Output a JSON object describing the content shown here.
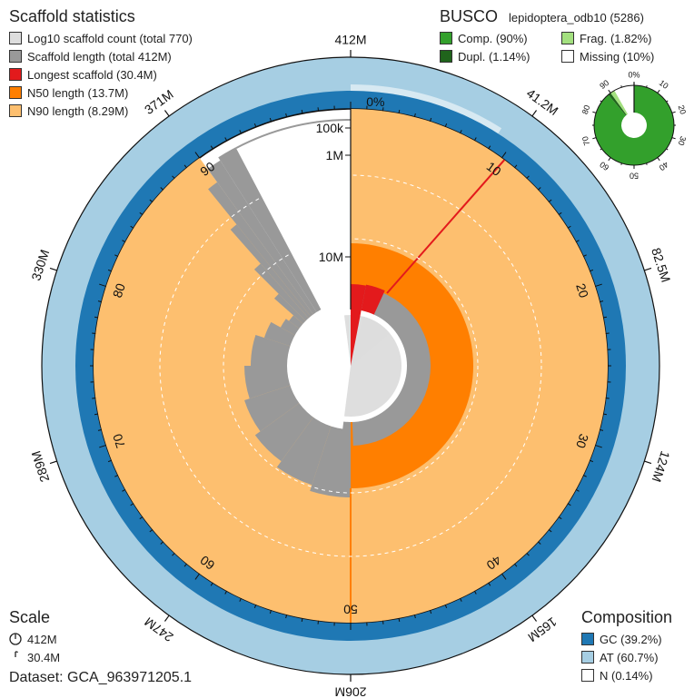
{
  "stats_legend": {
    "title": "Scaffold statistics",
    "items": [
      {
        "label": "Log10 scaffold count (total 770)",
        "color": "#dddddd"
      },
      {
        "label": "Scaffold length (total 412M)",
        "color": "#999999"
      },
      {
        "label": "Longest scaffold (30.4M)",
        "color": "#e31a1c"
      },
      {
        "label": "N50 length (13.7M)",
        "color": "#ff7f00"
      },
      {
        "label": "N90 length (8.29M)",
        "color": "#fdbf6f"
      }
    ]
  },
  "busco_legend": {
    "title": "BUSCO",
    "lineage": "lepidoptera_odb10 (5286)",
    "items": [
      {
        "label": "Comp. (90%)",
        "color": "#33a02c"
      },
      {
        "label": "Frag. (1.82%)",
        "color": "#a3e07f"
      },
      {
        "label": "Dupl. (1.14%)",
        "color": "#20641c"
      },
      {
        "label": "Missing (10%)",
        "color": "#ffffff"
      }
    ]
  },
  "scale_legend": {
    "title": "Scale",
    "items": [
      {
        "label": "412M",
        "fraction": 1.0
      },
      {
        "label": "30.4M",
        "fraction": 0.074
      }
    ]
  },
  "dataset": "Dataset: GCA_963971205.1",
  "composition_legend": {
    "title": "Composition",
    "items": [
      {
        "label": "GC (39.2%)",
        "color": "#1f78b4"
      },
      {
        "label": "AT (60.7%)",
        "color": "#a6cee3"
      },
      {
        "label": "N (0.14%)",
        "color": "#ffffff"
      }
    ]
  },
  "chart_data": {
    "type": "snail",
    "total_length": "412M",
    "scaffold_count": 770,
    "longest_scaffold": "30.4M",
    "n50": "13.7M",
    "n90": "8.29M",
    "colors": {
      "n90": "#fdbf6f",
      "n50": "#ff7f00",
      "longest": "#e31a1c",
      "length": "#999999",
      "count": "#dddddd",
      "gc": "#1f78b4",
      "at": "#a6cee3"
    },
    "outer_ticks": [
      {
        "label": "412M",
        "percent": 0
      },
      {
        "label": "41.2M",
        "percent": 10
      },
      {
        "label": "82.5M",
        "percent": 20
      },
      {
        "label": "124M",
        "percent": 30
      },
      {
        "label": "165M",
        "percent": 40
      },
      {
        "label": "206M",
        "percent": 50
      },
      {
        "label": "247M",
        "percent": 60
      },
      {
        "label": "289M",
        "percent": 70
      },
      {
        "label": "330M",
        "percent": 80
      },
      {
        "label": "371M",
        "percent": 90
      }
    ],
    "percent_ticks": [
      "0%",
      "10",
      "20",
      "30",
      "40",
      "50",
      "60",
      "70",
      "80",
      "90"
    ],
    "radial_scale_labels": [
      "100k",
      "1M",
      "10M"
    ],
    "n50_percent": 50,
    "n90_percent": 90,
    "gc_percent": 39.2,
    "at_percent": 60.7,
    "n_percent": 0.14,
    "busco": {
      "complete": 90,
      "fragmented": 1.82,
      "duplicated": 1.14,
      "missing": 10,
      "ticks": [
        "0%",
        "10",
        "20",
        "30",
        "40",
        "50",
        "60",
        "70",
        "80",
        "90"
      ]
    }
  }
}
